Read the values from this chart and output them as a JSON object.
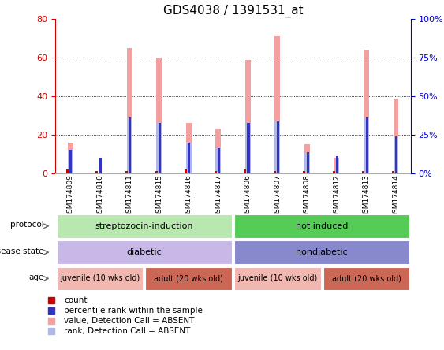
{
  "title": "GDS4038 / 1391531_at",
  "samples": [
    "GSM174809",
    "GSM174810",
    "GSM174811",
    "GSM174815",
    "GSM174816",
    "GSM174817",
    "GSM174806",
    "GSM174807",
    "GSM174808",
    "GSM174812",
    "GSM174813",
    "GSM174814"
  ],
  "value_absent": [
    16,
    0,
    65,
    60,
    26,
    23,
    59,
    71,
    15,
    8,
    64,
    39
  ],
  "rank_absent": [
    12,
    0,
    29,
    26,
    16,
    13,
    26,
    27,
    11,
    0,
    29,
    19
  ],
  "count_val": [
    2,
    1,
    1,
    1,
    2,
    1,
    2,
    1,
    1,
    1,
    1,
    1
  ],
  "percentile_val": [
    12,
    8,
    29,
    26,
    16,
    13,
    26,
    27,
    11,
    9,
    29,
    19
  ],
  "ylim_left": [
    0,
    80
  ],
  "ylim_right": [
    0,
    100
  ],
  "yticks_left": [
    0,
    20,
    40,
    60,
    80
  ],
  "ytick_labels_right": [
    "0%",
    "25%",
    "50%",
    "75%",
    "100%"
  ],
  "yticks_right": [
    0,
    25,
    50,
    75,
    100
  ],
  "color_value_absent": "#f4a0a0",
  "color_rank_absent": "#b0b8e8",
  "color_count": "#cc0000",
  "color_percentile": "#3333bb",
  "bg_color": "#ffffff",
  "axis_left_color": "#cc0000",
  "axis_right_color": "#0000cc",
  "title_fontsize": 11,
  "rows": [
    {
      "label": "protocol",
      "items": [
        {
          "label": "streptozocin-induction",
          "span": [
            0,
            6
          ],
          "color": "#b8e8b0"
        },
        {
          "label": "not induced",
          "span": [
            6,
            12
          ],
          "color": "#55cc55"
        }
      ]
    },
    {
      "label": "disease state",
      "items": [
        {
          "label": "diabetic",
          "span": [
            0,
            6
          ],
          "color": "#c8b8e8"
        },
        {
          "label": "nondiabetic",
          "span": [
            6,
            12
          ],
          "color": "#8888cc"
        }
      ]
    },
    {
      "label": "age",
      "items": [
        {
          "label": "juvenile (10 wks old)",
          "span": [
            0,
            3
          ],
          "color": "#f0b8b0"
        },
        {
          "label": "adult (20 wks old)",
          "span": [
            3,
            6
          ],
          "color": "#cc6655"
        },
        {
          "label": "juvenile (10 wks old)",
          "span": [
            6,
            9
          ],
          "color": "#f0b8b0"
        },
        {
          "label": "adult (20 wks old)",
          "span": [
            9,
            12
          ],
          "color": "#cc6655"
        }
      ]
    }
  ],
  "legend_items": [
    {
      "color": "#cc0000",
      "label": "count"
    },
    {
      "color": "#3333bb",
      "label": "percentile rank within the sample"
    },
    {
      "color": "#f4a0a0",
      "label": "value, Detection Call = ABSENT"
    },
    {
      "color": "#b0b8e8",
      "label": "rank, Detection Call = ABSENT"
    }
  ]
}
